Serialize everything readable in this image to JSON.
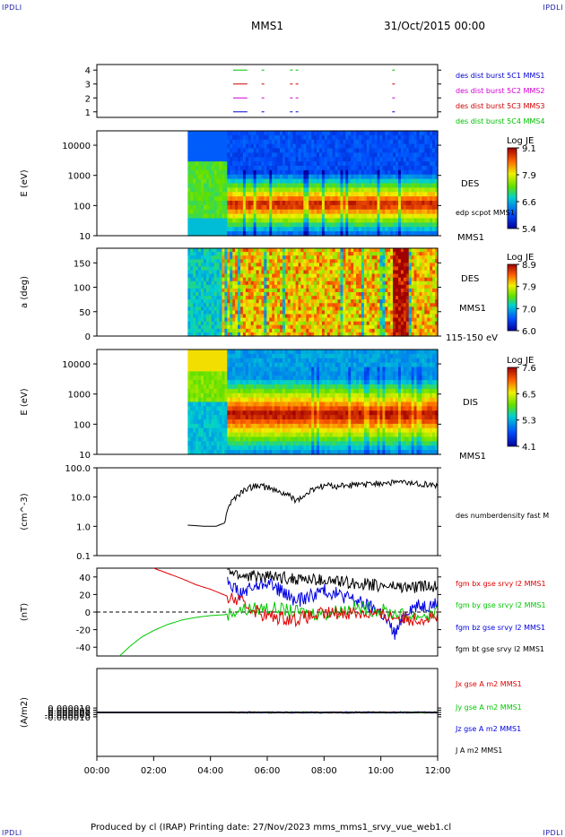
{
  "corners": {
    "top_left": "IPDLI",
    "top_right": "IPDLI",
    "bottom_left": "IPDLI",
    "bottom_right": "IPDLI"
  },
  "header": {
    "spacecraft": "MMS1",
    "date_time": "31/Oct/2015 00:00"
  },
  "footer": {
    "text": "Produced by cl (IRAP)   Printing date: 27/Nov/2023   mms_mms1_srvy_vue_web1.cl"
  },
  "colors": {
    "red": "#e00000",
    "green": "#00c800",
    "blue": "#0000e0",
    "magenta": "#e000e0",
    "black": "#000000"
  },
  "chart_data": [
    {
      "type": "line",
      "panel": "burst",
      "ylim": [
        0.6,
        4.4
      ],
      "yticks": [
        "4",
        "3",
        "2",
        "1"
      ],
      "legend": [
        {
          "label": "des dist burst 5C1 MMS1",
          "color": "#0000d0"
        },
        {
          "label": "des dist burst 5C2 MMS2",
          "color": "#d000d0"
        },
        {
          "label": "des dist burst 5C3 MMS3",
          "color": "#d00000"
        },
        {
          "label": "des dist burst 5C4 MMS4",
          "color": "#00c000"
        }
      ],
      "bursts_hours": [
        4.8,
        5.8,
        6.8,
        7.0,
        10.4
      ]
    },
    {
      "type": "heatmap",
      "panel": "des_energy",
      "ylabel": "E (eV)",
      "yscale": "log",
      "ylim": [
        10,
        30000
      ],
      "yticks": [
        "10000",
        "1000",
        "100",
        "10"
      ],
      "colorbar": {
        "title": "Log JE",
        "ticks": [
          "9.1",
          "7.9",
          "6.6",
          "5.4"
        ]
      },
      "labels": [
        "DES",
        "edp scpot MMS1",
        "MMS1"
      ],
      "data_start_hour": 3.2
    },
    {
      "type": "heatmap",
      "panel": "des_pitch",
      "ylabel": "a (deg)",
      "ylim": [
        0,
        180
      ],
      "yticks": [
        "150",
        "100",
        "50",
        "0"
      ],
      "colorbar": {
        "title": "Log JE",
        "ticks": [
          "8.9",
          "7.9",
          "7.0",
          "6.0"
        ]
      },
      "labels": [
        "DES",
        "MMS1",
        "115-150 eV"
      ],
      "data_start_hour": 3.2
    },
    {
      "type": "heatmap",
      "panel": "dis_energy",
      "ylabel": "E (eV)",
      "yscale": "log",
      "ylim": [
        10,
        30000
      ],
      "yticks": [
        "10000",
        "1000",
        "100",
        "10"
      ],
      "colorbar": {
        "title": "Log JE",
        "ticks": [
          "7.6",
          "6.5",
          "5.3",
          "4.1"
        ]
      },
      "labels": [
        "DIS",
        "MMS1"
      ],
      "data_start_hour": 3.2
    },
    {
      "type": "line",
      "panel": "density",
      "ylabel": "(cm^-3)",
      "yscale": "log",
      "ylim": [
        0.1,
        100
      ],
      "yticks": [
        "100.0",
        "10.0",
        "1.0",
        "0.1"
      ],
      "series": [
        {
          "name": "des numberdensity fast M",
          "color": "#000000",
          "x": [
            3.2,
            3.8,
            4.2,
            4.5,
            4.6,
            4.8,
            5.0,
            5.3,
            5.6,
            6.0,
            6.3,
            6.7,
            7.0,
            7.3,
            7.6,
            7.8,
            8.1,
            8.5,
            9.0,
            9.5,
            10.0,
            10.5,
            11.0,
            11.5,
            12.0
          ],
          "y": [
            1.1,
            1.0,
            1.0,
            1.3,
            4.0,
            8.0,
            12.0,
            20.0,
            25.0,
            22.0,
            16.0,
            12.0,
            8.0,
            10.0,
            18.0,
            22.0,
            25.0,
            24.0,
            26.0,
            27.0,
            30.0,
            33.0,
            30.0,
            28.0,
            24.0
          ]
        }
      ]
    },
    {
      "type": "line",
      "panel": "magnetic_field",
      "ylabel": "(nT)",
      "ylim": [
        -50,
        50
      ],
      "yticks": [
        "40",
        "20",
        "0",
        "-20",
        "-40"
      ],
      "series": [
        {
          "name": "fgm bx gse srvy l2 MMS1",
          "color": "#e00000",
          "x": [
            2.0,
            2.5,
            3.0,
            3.5,
            4.0,
            4.3,
            4.6,
            5.0,
            6.0,
            7.0,
            8.0,
            9.0,
            10.0,
            11.0,
            12.0
          ],
          "y": [
            50,
            44,
            38,
            31,
            26,
            22,
            18,
            12,
            -5,
            -8,
            -2,
            0,
            -3,
            -8,
            -5
          ]
        },
        {
          "name": "fgm by gse srvy l2 MMS1",
          "color": "#00c800",
          "x": [
            0.8,
            1.2,
            1.6,
            2.0,
            2.5,
            3.0,
            3.5,
            4.0,
            4.5,
            5.0,
            6.0,
            7.0,
            8.0,
            9.0,
            10.0,
            11.0,
            12.0
          ],
          "y": [
            -50,
            -38,
            -28,
            -21,
            -14,
            -9,
            -6,
            -4,
            -3,
            2,
            5,
            0,
            -2,
            5,
            2,
            -5,
            -2
          ]
        },
        {
          "name": "fgm bz gse srvy l2 MMS1",
          "color": "#0000e0",
          "x": [
            4.6,
            5.0,
            6.0,
            7.0,
            8.0,
            9.0,
            10.0,
            10.5,
            11.0,
            12.0
          ],
          "y": [
            40,
            20,
            35,
            12,
            25,
            15,
            0,
            -25,
            5,
            10
          ]
        },
        {
          "name": "fgm bt gse srvy l2 MMS1",
          "color": "#000000",
          "x": [
            4.6,
            5.0,
            6.0,
            7.0,
            8.0,
            9.0,
            10.0,
            11.0,
            12.0
          ],
          "y": [
            48,
            42,
            40,
            38,
            36,
            33,
            30,
            28,
            30
          ]
        }
      ]
    },
    {
      "type": "line",
      "panel": "current",
      "ylabel": "(A/m2)",
      "ylim": [
        -0.0001,
        0.0001
      ],
      "yticks": [
        "0.000010",
        "0.000005",
        "0.000000",
        "-0.000005",
        "-0.000010"
      ],
      "series": [
        {
          "name": "Jx gse A m2 MMS1",
          "color": "#e00000",
          "x": [
            0,
            12
          ],
          "y": [
            0,
            0
          ]
        },
        {
          "name": "Jy gse A m2 MMS1",
          "color": "#00c800",
          "x": [
            0,
            12
          ],
          "y": [
            0,
            0
          ]
        },
        {
          "name": "Jz gse A m2 MMS1",
          "color": "#0000e0",
          "x": [
            0,
            12
          ],
          "y": [
            0,
            0
          ]
        },
        {
          "name": "J A m2 MMS1",
          "color": "#000000",
          "x": [
            0,
            12
          ],
          "y": [
            0,
            0
          ]
        }
      ]
    }
  ],
  "xaxis": {
    "xlim_hours": [
      0,
      12
    ],
    "tick_labels": [
      "00:00",
      "02:00",
      "04:00",
      "06:00",
      "08:00",
      "10:00",
      "12:00"
    ]
  }
}
